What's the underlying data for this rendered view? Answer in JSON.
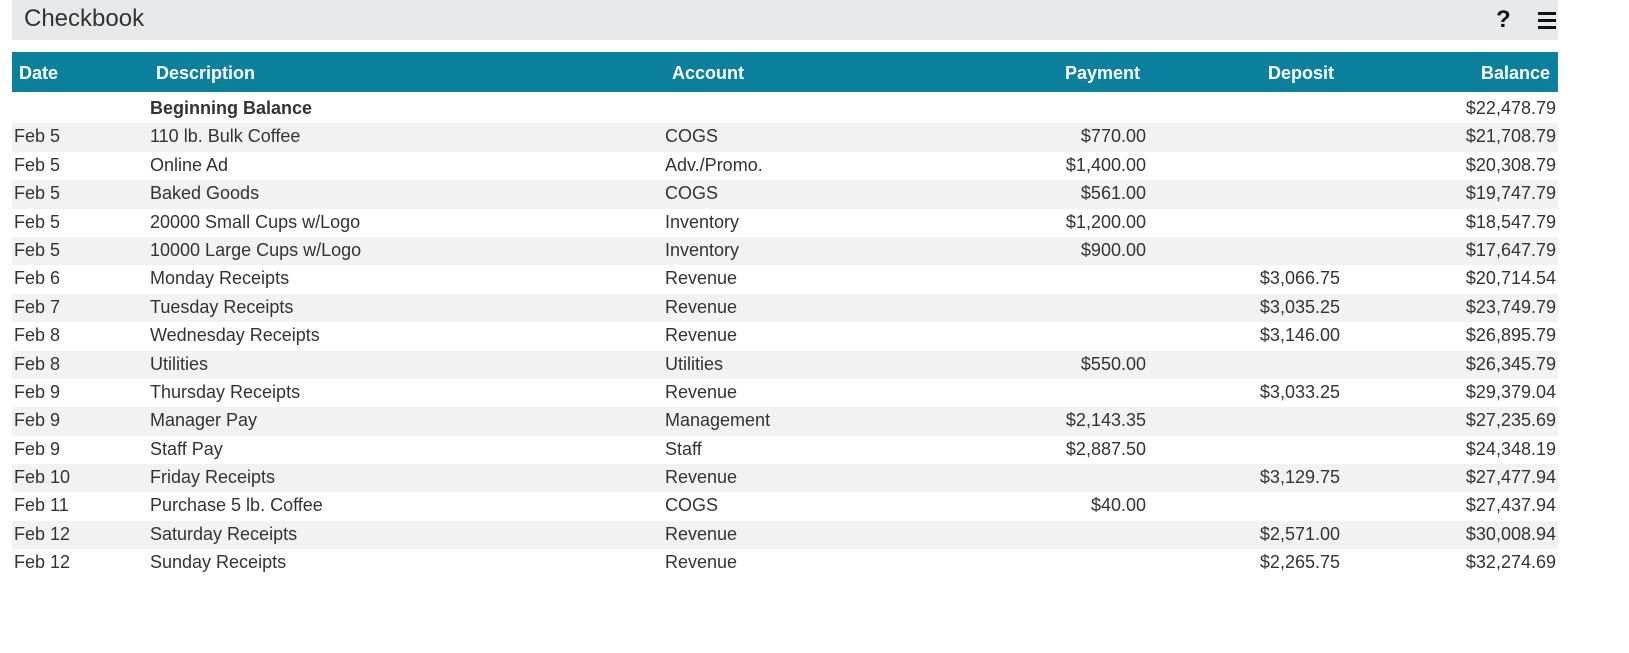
{
  "header": {
    "title": "Checkbook",
    "help_icon": "?",
    "menu_icon": "hamburger-menu"
  },
  "colors": {
    "header_bg": "#0a809d",
    "titlebar_bg": "#e8e9ea",
    "alt_row": "#f2f2f2"
  },
  "columns": [
    "Date",
    "Description",
    "Account",
    "Payment",
    "Deposit",
    "Balance"
  ],
  "rows": [
    {
      "date": "",
      "description": "Beginning Balance",
      "account": "",
      "payment": "",
      "deposit": "",
      "balance": "$22,478.79"
    },
    {
      "date": "Feb 5",
      "description": "110 lb. Bulk Coffee",
      "account": "COGS",
      "payment": "$770.00",
      "deposit": "",
      "balance": "$21,708.79"
    },
    {
      "date": "Feb 5",
      "description": "Online Ad",
      "account": "Adv./Promo.",
      "payment": "$1,400.00",
      "deposit": "",
      "balance": "$20,308.79"
    },
    {
      "date": "Feb 5",
      "description": "Baked Goods",
      "account": "COGS",
      "payment": "$561.00",
      "deposit": "",
      "balance": "$19,747.79"
    },
    {
      "date": "Feb 5",
      "description": "20000 Small Cups w/Logo",
      "account": "Inventory",
      "payment": "$1,200.00",
      "deposit": "",
      "balance": "$18,547.79"
    },
    {
      "date": "Feb 5",
      "description": "10000 Large Cups w/Logo",
      "account": "Inventory",
      "payment": "$900.00",
      "deposit": "",
      "balance": "$17,647.79"
    },
    {
      "date": "Feb 6",
      "description": "Monday Receipts",
      "account": "Revenue",
      "payment": "",
      "deposit": "$3,066.75",
      "balance": "$20,714.54"
    },
    {
      "date": "Feb 7",
      "description": "Tuesday Receipts",
      "account": "Revenue",
      "payment": "",
      "deposit": "$3,035.25",
      "balance": "$23,749.79"
    },
    {
      "date": "Feb 8",
      "description": "Wednesday Receipts",
      "account": "Revenue",
      "payment": "",
      "deposit": "$3,146.00",
      "balance": "$26,895.79"
    },
    {
      "date": "Feb 8",
      "description": "Utilities",
      "account": "Utilities",
      "payment": "$550.00",
      "deposit": "",
      "balance": "$26,345.79"
    },
    {
      "date": "Feb 9",
      "description": "Thursday Receipts",
      "account": "Revenue",
      "payment": "",
      "deposit": "$3,033.25",
      "balance": "$29,379.04"
    },
    {
      "date": "Feb 9",
      "description": "Manager Pay",
      "account": "Management",
      "payment": "$2,143.35",
      "deposit": "",
      "balance": "$27,235.69"
    },
    {
      "date": "Feb 9",
      "description": "Staff Pay",
      "account": "Staff",
      "payment": "$2,887.50",
      "deposit": "",
      "balance": "$24,348.19"
    },
    {
      "date": "Feb 10",
      "description": "Friday Receipts",
      "account": "Revenue",
      "payment": "",
      "deposit": "$3,129.75",
      "balance": "$27,477.94"
    },
    {
      "date": "Feb 11",
      "description": "Purchase 5 lb. Coffee",
      "account": "COGS",
      "payment": "$40.00",
      "deposit": "",
      "balance": "$27,437.94"
    },
    {
      "date": "Feb 12",
      "description": "Saturday Receipts",
      "account": "Revenue",
      "payment": "",
      "deposit": "$2,571.00",
      "balance": "$30,008.94"
    },
    {
      "date": "Feb 12",
      "description": "Sunday Receipts",
      "account": "Revenue",
      "payment": "",
      "deposit": "$2,265.75",
      "balance": "$32,274.69"
    }
  ]
}
